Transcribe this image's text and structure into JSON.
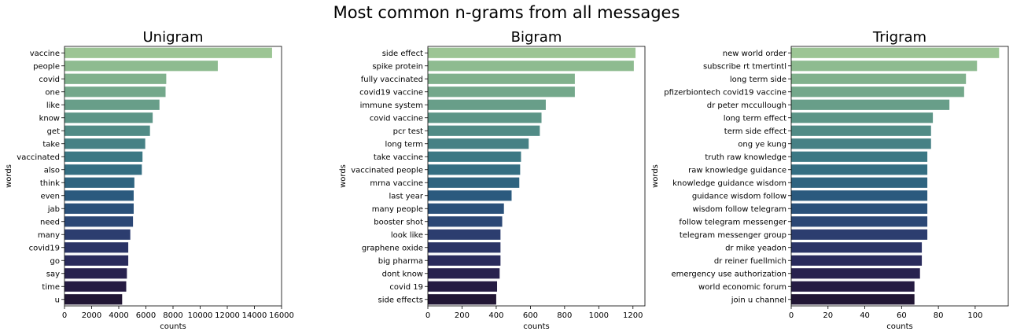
{
  "suptitle": "Most common n-grams from all messages",
  "palette": [
    "#9cc594",
    "#8ebb90",
    "#81b18d",
    "#74a88b",
    "#689e89",
    "#5d9587",
    "#518b86",
    "#468185",
    "#3c7884",
    "#346e82",
    "#2f6480",
    "#2b5a7e",
    "#2a517a",
    "#2b4775",
    "#2c3d6f",
    "#2b3466",
    "#2a2b5c",
    "#28224f",
    "#251b42",
    "#211634"
  ],
  "chart_data": [
    {
      "type": "bar",
      "orientation": "horizontal",
      "title": "Unigram",
      "xlabel": "counts",
      "ylabel": "words",
      "xlim": [
        0,
        16000
      ],
      "xticks": [
        0,
        2000,
        4000,
        6000,
        8000,
        10000,
        12000,
        14000,
        16000
      ],
      "categories": [
        "vaccine",
        "people",
        "covid",
        "one",
        "like",
        "know",
        "get",
        "take",
        "vaccinated",
        "also",
        "think",
        "even",
        "jab",
        "need",
        "many",
        "covid19",
        "go",
        "say",
        "time",
        "u"
      ],
      "values": [
        15300,
        11300,
        7500,
        7450,
        7000,
        6500,
        6300,
        5950,
        5750,
        5700,
        5150,
        5100,
        5100,
        5050,
        4850,
        4700,
        4700,
        4600,
        4550,
        4250
      ]
    },
    {
      "type": "bar",
      "orientation": "horizontal",
      "title": "Bigram",
      "xlabel": "counts",
      "ylabel": "words",
      "xlim": [
        0,
        1270
      ],
      "xticks": [
        0,
        200,
        400,
        600,
        800,
        1000,
        1200
      ],
      "categories": [
        "side effect",
        "spike protein",
        "fully vaccinated",
        "covid19 vaccine",
        "immune system",
        "covid vaccine",
        "pcr test",
        "long term",
        "take vaccine",
        "vaccinated people",
        "mrna vaccine",
        "last year",
        "many people",
        "booster shot",
        "look like",
        "graphene oxide",
        "big pharma",
        "dont know",
        "covid 19",
        "side effects"
      ],
      "values": [
        1215,
        1205,
        860,
        860,
        690,
        665,
        655,
        590,
        545,
        540,
        535,
        490,
        445,
        435,
        425,
        425,
        425,
        420,
        405,
        400
      ]
    },
    {
      "type": "bar",
      "orientation": "horizontal",
      "title": "Trigram",
      "xlabel": "counts",
      "ylabel": "words",
      "xlim": [
        0,
        118
      ],
      "xticks": [
        0,
        20,
        40,
        60,
        80,
        100
      ],
      "categories": [
        "new world order",
        "subscribe rt tmertintl",
        "long term side",
        "pfizerbiontech covid19 vaccine",
        "dr peter mccullough",
        "long term effect",
        "term side effect",
        "ong ye kung",
        "truth raw knowledge",
        "raw knowledge guidance",
        "knowledge guidance wisdom",
        "guidance wisdom follow",
        "wisdom follow telegram",
        "follow telegram messenger",
        "telegram messenger group",
        "dr mike yeadon",
        "dr reiner fuellmich",
        "emergency use authorization",
        "world economic forum",
        "join u channel"
      ],
      "values": [
        113,
        101,
        95,
        94,
        86,
        77,
        76,
        76,
        74,
        74,
        74,
        74,
        74,
        74,
        74,
        71,
        71,
        70,
        67,
        67
      ]
    }
  ]
}
